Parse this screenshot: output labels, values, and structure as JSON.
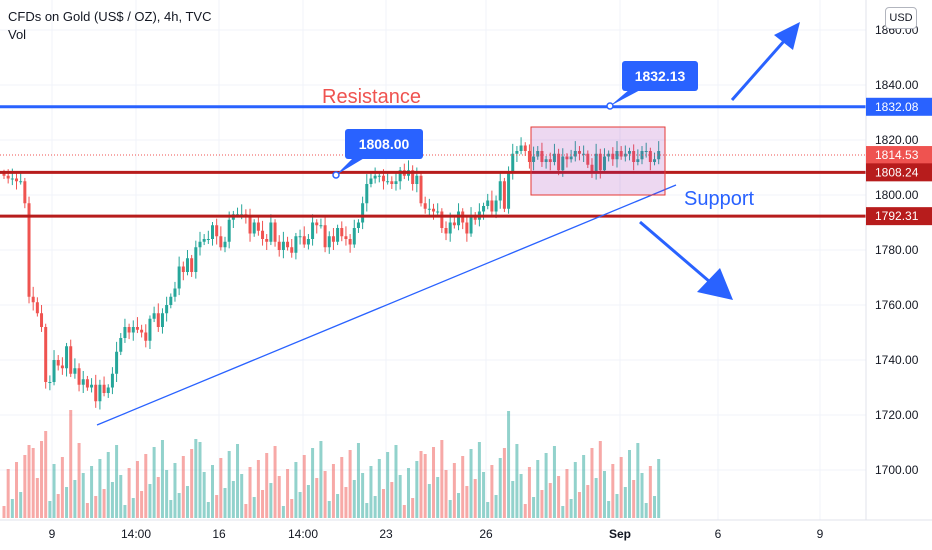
{
  "header": {
    "title": "CFDs on Gold (US$ / OZ), 4h, TVC",
    "vol_label": "Vol"
  },
  "currency_button": "USD",
  "chart_data": {
    "type": "candlestick",
    "title": "CFDs on Gold (US$ / OZ), 4h, TVC",
    "y_axis": {
      "range": [
        1686,
        1866
      ],
      "ticks": [
        1700,
        1720,
        1740,
        1760,
        1780,
        1800,
        1820,
        1840,
        1860
      ],
      "tick_labels": [
        "1700.00",
        "1720.00",
        "1740.00",
        "1760.00",
        "1780.00",
        "1800.00",
        "1820.00",
        "1840.00",
        "1860.00"
      ]
    },
    "x_axis": {
      "tick_labels": [
        "9",
        "14:00",
        "16",
        "14:00",
        "23",
        "26",
        "Sep",
        "6",
        "9"
      ]
    },
    "grid": true,
    "candles_close": [
      1807,
      1806,
      1806,
      1805,
      1805,
      1797,
      1763,
      1761,
      1757,
      1752,
      1732,
      1732,
      1740,
      1738,
      1737,
      1745,
      1735,
      1737,
      1731,
      1733,
      1730,
      1731,
      1725,
      1731,
      1728,
      1730,
      1735,
      1743,
      1748,
      1752,
      1750,
      1752,
      1751,
      1750,
      1747,
      1755,
      1757,
      1752,
      1757,
      1760,
      1763,
      1766,
      1774,
      1772,
      1777,
      1772,
      1781,
      1783,
      1784,
      1784,
      1789,
      1785,
      1781,
      1783,
      1791,
      1793,
      1793,
      1793,
      1792,
      1786,
      1790,
      1787,
      1784,
      1783,
      1790,
      1783,
      1780,
      1783,
      1781,
      1779,
      1785,
      1785,
      1782,
      1784,
      1790,
      1789,
      1789,
      1781,
      1785,
      1783,
      1788,
      1785,
      1784,
      1782,
      1788,
      1790,
      1797,
      1804,
      1806,
      1807,
      1807,
      1805,
      1805,
      1804,
      1805,
      1809,
      1807,
      1809,
      1804,
      1807,
      1797,
      1795,
      1795,
      1794,
      1794,
      1788,
      1786,
      1790,
      1789,
      1794,
      1790,
      1786,
      1792,
      1791,
      1794,
      1796,
      1798,
      1794,
      1798,
      1805,
      1795,
      1808,
      1815,
      1816,
      1818,
      1816,
      1812,
      1814,
      1816,
      1812,
      1813,
      1812,
      1815,
      1809,
      1814,
      1813,
      1814,
      1816,
      1815,
      1815,
      1811,
      1808,
      1815,
      1809,
      1814,
      1815,
      1813,
      1816,
      1814,
      1815,
      1816,
      1812,
      1813,
      1816,
      1816,
      1812,
      1813,
      1816
    ],
    "price_labels": [
      {
        "value": "1832.08",
        "color": "#2962ff"
      },
      {
        "value": "1814.53",
        "color": "#ef5350"
      },
      {
        "value": "1808.24",
        "color": "#b71c1c"
      },
      {
        "value": "1792.31",
        "color": "#b71c1c"
      }
    ],
    "horizontal_lines": [
      {
        "price": 1832.08,
        "color": "#2962ff"
      },
      {
        "price": 1808.24,
        "color": "#b71c1c"
      },
      {
        "price": 1792.31,
        "color": "#b71c1c"
      }
    ],
    "callouts": [
      "1808.00",
      "1832.13"
    ],
    "annotations": [
      "Resistance",
      "Support"
    ],
    "colors": {
      "up": "#26a69a",
      "down": "#ef5350",
      "line_blue": "#2962ff",
      "line_red": "#b71c1c"
    }
  }
}
